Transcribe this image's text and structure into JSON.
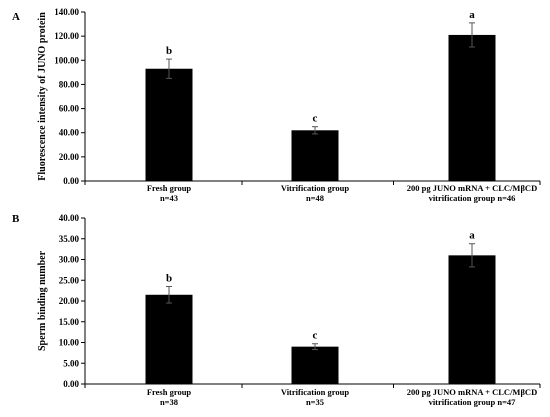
{
  "chart_data": [
    {
      "type": "bar",
      "panel_label": "A",
      "ylabel": "Fluorescence intensity of JUNO protein",
      "ylim": [
        0,
        140
      ],
      "yticks": [
        "0.00",
        "20.00",
        "40.00",
        "60.00",
        "80.00",
        "100.00",
        "120.00",
        "140.00"
      ],
      "categories": [
        [
          "Fresh group",
          "n=43"
        ],
        [
          "Vitrification group",
          "n=48"
        ],
        [
          "200 pg JUNO mRNA + CLC/MβCD",
          "vitrification  group n=46"
        ]
      ],
      "values": [
        93,
        42,
        121
      ],
      "errors": [
        8,
        3,
        10
      ],
      "significance": [
        "b",
        "c",
        "a"
      ],
      "bar_color": "#000000"
    },
    {
      "type": "bar",
      "panel_label": "B",
      "ylabel": "Sperm binding number",
      "ylim": [
        0,
        40
      ],
      "yticks": [
        "0.00",
        "5.00",
        "10.00",
        "15.00",
        "20.00",
        "25.00",
        "30.00",
        "35.00",
        "40.00"
      ],
      "categories": [
        [
          "Fresh group",
          "n=38"
        ],
        [
          "Vitrification group",
          "n=35"
        ],
        [
          "200 pg JUNO mRNA + CLC/MβCD",
          "vitrification group n=47"
        ]
      ],
      "values": [
        21.5,
        9,
        31
      ],
      "errors": [
        2,
        0.7,
        2.8
      ],
      "significance": [
        "b",
        "c",
        "a"
      ],
      "bar_color": "#000000"
    }
  ]
}
